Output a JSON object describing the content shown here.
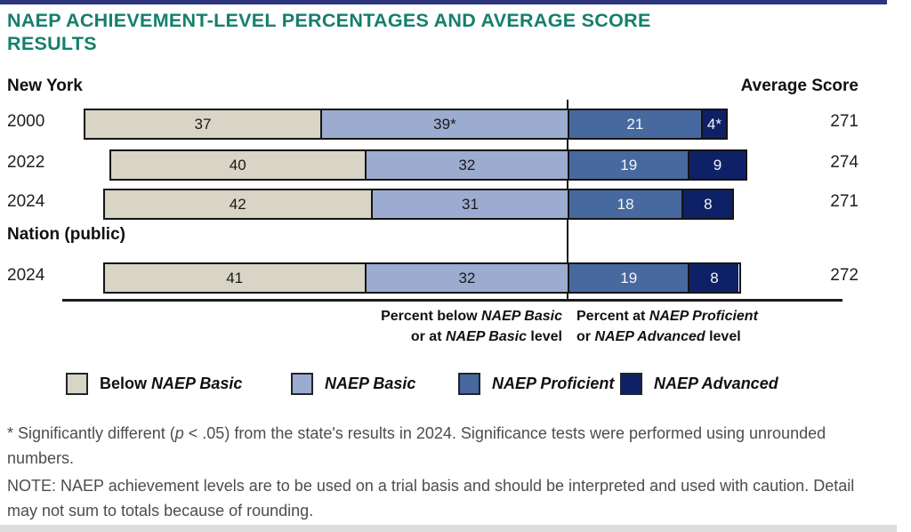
{
  "page": {
    "top_bar_color": "#2c3480",
    "accent_color": "#157f6c",
    "title_lines": [
      "NAEP ACHIEVEMENT-LEVEL PERCENTAGES AND AVERAGE SCORE",
      "RESULTS"
    ]
  },
  "header": {
    "jurisdiction": "New York",
    "average_score_label": "Average Score"
  },
  "chart_data": {
    "type": "bar",
    "orientation": "horizontal",
    "stacked": true,
    "unit": "percent",
    "title": "NAEP ACHIEVEMENT-LEVEL PERCENTAGES AND AVERAGE SCORE RESULTS",
    "levels": [
      "below_basic",
      "basic",
      "proficient",
      "advanced"
    ],
    "colors": {
      "below_basic": "#d8d4c6",
      "basic": "#9cacd0",
      "proficient": "#48699f",
      "advanced": "#0f2166"
    },
    "groups": [
      {
        "label": "New York",
        "rows": [
          {
            "year": "2000",
            "values": [
              37,
              39,
              21,
              4
            ],
            "labels": [
              "37",
              "39*",
              "21",
              "4*"
            ],
            "average_score": "271"
          },
          {
            "year": "2022",
            "values": [
              40,
              32,
              19,
              9
            ],
            "labels": [
              "40",
              "32",
              "19",
              "9"
            ],
            "average_score": "274"
          },
          {
            "year": "2024",
            "values": [
              42,
              31,
              18,
              8
            ],
            "labels": [
              "42",
              "31",
              "18",
              "8"
            ],
            "average_score": "271"
          }
        ]
      },
      {
        "label": "Nation (public)",
        "rows": [
          {
            "year": "2024",
            "values": [
              41,
              32,
              19,
              8
            ],
            "labels": [
              "41",
              "32",
              "19",
              "8"
            ],
            "average_score": "272"
          }
        ]
      }
    ],
    "axis_captions": {
      "left": [
        [
          {
            "t": "Percent below "
          },
          {
            "t": "NAEP Basic",
            "i": true
          }
        ],
        [
          {
            "t": "or at "
          },
          {
            "t": "NAEP Basic",
            "i": true
          },
          {
            "t": " level"
          }
        ]
      ],
      "right": [
        [
          {
            "t": "Percent at "
          },
          {
            "t": "NAEP Proficient",
            "i": true
          }
        ],
        [
          {
            "t": "or "
          },
          {
            "t": "NAEP Advanced",
            "i": true
          },
          {
            "t": " level"
          }
        ]
      ]
    },
    "legend": [
      {
        "prefix": "Below ",
        "name": "NAEP Basic",
        "level": "below_basic"
      },
      {
        "prefix": "",
        "name": "NAEP Basic",
        "level": "basic"
      },
      {
        "prefix": "",
        "name": "NAEP Proficient",
        "level": "proficient"
      },
      {
        "prefix": "",
        "name": "NAEP Advanced",
        "level": "advanced"
      }
    ]
  },
  "footnotes": {
    "significance": [
      {
        "t": "*  Significantly different ("
      },
      {
        "t": "p",
        "i": true
      },
      {
        "t": " < .05) from the state's results in 2024. Significance tests were performed using unrounded numbers."
      }
    ],
    "note": "NOTE:  NAEP achievement levels are to be used on a trial basis and should be interpreted and used with caution. Detail may not sum to totals because of rounding."
  }
}
